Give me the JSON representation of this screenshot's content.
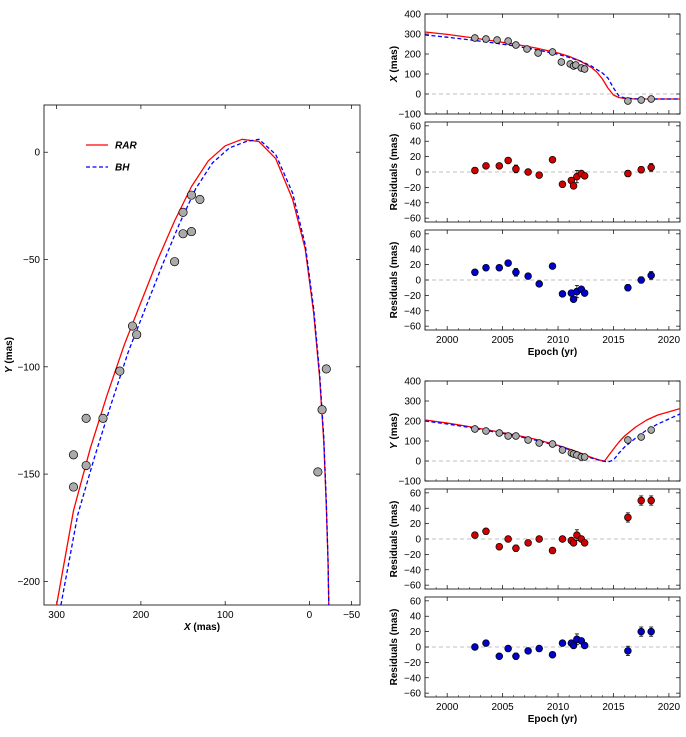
{
  "colors": {
    "rar": "#ff0000",
    "bh": "#0000ff",
    "marker_gray": "#aaaaaa",
    "marker_red": "#d00000",
    "marker_blue": "#0000cc",
    "zero_line": "#aaaaaa"
  },
  "chart_data": [
    {
      "id": "orbit",
      "type": "line",
      "xlabel": "X (mas)",
      "xlabel_var": "X",
      "xlabel_unit": " (mas)",
      "ylabel": "Y (mas)",
      "ylabel_var": "Y",
      "ylabel_unit": " (mas)",
      "xlim": [
        315,
        -60
      ],
      "ylim": [
        -211,
        22
      ],
      "xticks": [
        300,
        200,
        100,
        0,
        -50
      ],
      "xtick_labels": [
        "300",
        "200",
        "100",
        "0",
        "−50"
      ],
      "yticks": [
        0,
        -50,
        -100,
        -150,
        -200
      ],
      "ytick_labels": [
        "0",
        "−50",
        "−100",
        "−150",
        "−200"
      ],
      "legend_position": "top-left",
      "series": [
        {
          "name": "RAR",
          "style": "solid",
          "color": "#ff0000",
          "x": [
            300,
            280,
            260,
            240,
            220,
            200,
            180,
            160,
            140,
            120,
            100,
            80,
            60,
            40,
            20,
            5,
            -5,
            -12,
            -17,
            -20,
            -22,
            -23
          ],
          "y": [
            -211,
            -167,
            -138,
            -113,
            -90,
            -70,
            -50,
            -32,
            -16,
            -4,
            3,
            6,
            5,
            -3,
            -22,
            -45,
            -75,
            -105,
            -135,
            -165,
            -190,
            -211
          ]
        },
        {
          "name": "BH",
          "style": "dashed",
          "color": "#0000ff",
          "x": [
            295,
            275,
            255,
            235,
            215,
            195,
            175,
            155,
            135,
            115,
            95,
            75,
            60,
            40,
            20,
            5,
            -5,
            -12,
            -17,
            -20,
            -22,
            -23
          ],
          "y": [
            -211,
            -169,
            -142,
            -117,
            -93,
            -73,
            -53,
            -34,
            -17,
            -5,
            2,
            5,
            6,
            -1,
            -19,
            -43,
            -73,
            -103,
            -133,
            -163,
            -190,
            -211
          ]
        }
      ],
      "points": {
        "x": [
          280,
          280,
          265,
          265,
          245,
          225,
          210,
          205,
          160,
          150,
          150,
          140,
          140,
          130,
          -10,
          -15,
          -20
        ],
        "y": [
          -141,
          -156,
          -124,
          -146,
          -124,
          -102,
          -81,
          -85,
          -51,
          -38,
          -28,
          -37,
          -20,
          -22,
          -149,
          -120,
          -101
        ]
      }
    },
    {
      "id": "x_vs_time",
      "type": "line",
      "xlabel": "",
      "ylabel": "X (mas)",
      "ylabel_var": "X",
      "ylabel_unit": " (mas)",
      "xlim": [
        1998,
        2021
      ],
      "ylim": [
        -100,
        400
      ],
      "xticks": [
        2000,
        2005,
        2010,
        2015,
        2020
      ],
      "yticks": [
        -100,
        0,
        100,
        200,
        300,
        400
      ],
      "ytick_labels": [
        "−100",
        "0",
        "100",
        "200",
        "300",
        "400"
      ],
      "series": [
        {
          "name": "RAR",
          "style": "solid",
          "color": "#ff0000",
          "x": [
            1998,
            2000,
            2002,
            2004,
            2006,
            2008,
            2010,
            2011,
            2012,
            2013,
            2013.5,
            2014,
            2014.5,
            2015,
            2015.5,
            2016,
            2017,
            2018,
            2019,
            2021
          ],
          "y": [
            310,
            298,
            283,
            267,
            250,
            230,
            205,
            188,
            165,
            133,
            110,
            75,
            30,
            -5,
            -18,
            -22,
            -25,
            -25,
            -25,
            -25
          ]
        },
        {
          "name": "BH",
          "style": "dashed",
          "color": "#0000ff",
          "x": [
            1998,
            2000,
            2002,
            2004,
            2006,
            2008,
            2010,
            2011,
            2012,
            2013,
            2014,
            2014.5,
            2015,
            2015.5,
            2016,
            2017,
            2018,
            2019,
            2021
          ],
          "y": [
            295,
            284,
            271,
            257,
            241,
            222,
            198,
            183,
            165,
            140,
            105,
            80,
            30,
            -10,
            -20,
            -24,
            -25,
            -25,
            -25
          ]
        }
      ],
      "points": {
        "x": [
          2002.5,
          2003.5,
          2004.5,
          2005.5,
          2006.2,
          2007.2,
          2008.2,
          2009.5,
          2010.3,
          2011.1,
          2011.4,
          2011.6,
          2012.1,
          2012.4,
          2016.3,
          2017.5,
          2018.4
        ],
        "y": [
          280,
          275,
          270,
          265,
          245,
          225,
          205,
          210,
          160,
          150,
          140,
          145,
          130,
          125,
          -35,
          -30,
          -25
        ]
      }
    },
    {
      "id": "x_residuals_rar",
      "type": "scatter",
      "xlabel": "",
      "ylabel": "Residuals (mas)",
      "xlim": [
        1998,
        2021
      ],
      "ylim": [
        -65,
        65
      ],
      "xticks": [
        2000,
        2005,
        2010,
        2015,
        2020
      ],
      "yticks": [
        -60,
        -40,
        -20,
        0,
        20,
        40,
        60
      ],
      "ytick_labels": [
        "−60",
        "−40",
        "−20",
        "0",
        "20",
        "40",
        "60"
      ],
      "points": {
        "x": [
          2002.5,
          2003.5,
          2004.7,
          2005.5,
          2006.2,
          2007.3,
          2008.3,
          2009.5,
          2010.4,
          2011.2,
          2011.4,
          2011.7,
          2012.1,
          2012.4,
          2016.3,
          2017.5,
          2018.4
        ],
        "y": [
          2,
          8,
          8,
          15,
          4,
          0,
          -4,
          16,
          -16,
          -11,
          -18,
          -6,
          -2,
          -5,
          -2,
          3,
          6
        ],
        "err": [
          0,
          0,
          0,
          0,
          5,
          0,
          0,
          0,
          0,
          0,
          0,
          8,
          0,
          0,
          4,
          4,
          5
        ]
      }
    },
    {
      "id": "x_residuals_bh",
      "type": "scatter",
      "xlabel": "Epoch (yr)",
      "ylabel": "Residuals (mas)",
      "xlim": [
        1998,
        2021
      ],
      "ylim": [
        -65,
        65
      ],
      "xticks": [
        2000,
        2005,
        2010,
        2015,
        2020
      ],
      "yticks": [
        -60,
        -40,
        -20,
        0,
        20,
        40,
        60
      ],
      "ytick_labels": [
        "−60",
        "−40",
        "−20",
        "0",
        "20",
        "40",
        "60"
      ],
      "points": {
        "x": [
          2002.5,
          2003.5,
          2004.7,
          2005.5,
          2006.2,
          2007.3,
          2008.3,
          2009.5,
          2010.4,
          2011.2,
          2011.4,
          2011.7,
          2012.1,
          2012.4,
          2016.3,
          2017.5,
          2018.4
        ],
        "y": [
          10,
          16,
          16,
          22,
          10,
          5,
          -5,
          18,
          -18,
          -17,
          -25,
          -15,
          -12,
          -17,
          -10,
          0,
          6
        ],
        "err": [
          0,
          0,
          0,
          0,
          5,
          0,
          0,
          0,
          0,
          0,
          0,
          8,
          0,
          0,
          4,
          4,
          5
        ]
      }
    },
    {
      "id": "y_vs_time",
      "type": "line",
      "xlabel": "",
      "ylabel": "Y (mas)",
      "ylabel_var": "Y",
      "ylabel_unit": " (mas)",
      "xlim": [
        1998,
        2021
      ],
      "ylim": [
        -100,
        400
      ],
      "xticks": [
        2000,
        2005,
        2010,
        2015,
        2020
      ],
      "yticks": [
        -100,
        0,
        100,
        200,
        300,
        400
      ],
      "ytick_labels": [
        "−100",
        "0",
        "100",
        "200",
        "300",
        "400"
      ],
      "series": [
        {
          "name": "RAR",
          "style": "solid",
          "color": "#ff0000",
          "x": [
            1998,
            2000,
            2002,
            2004,
            2006,
            2008,
            2010,
            2011,
            2012,
            2013,
            2013.7,
            2014.2,
            2014.6,
            2015,
            2015.5,
            2016,
            2017,
            2018,
            2019,
            2021
          ],
          "y": [
            205,
            190,
            172,
            152,
            132,
            108,
            78,
            60,
            40,
            18,
            5,
            0,
            30,
            60,
            95,
            125,
            170,
            205,
            230,
            262
          ]
        },
        {
          "name": "BH",
          "style": "dashed",
          "color": "#0000ff",
          "x": [
            1998,
            2000,
            2002,
            2004,
            2006,
            2008,
            2010,
            2011,
            2012,
            2013,
            2014,
            2014.5,
            2015,
            2015.5,
            2016,
            2017,
            2018,
            2019,
            2021
          ],
          "y": [
            200,
            185,
            168,
            148,
            128,
            104,
            75,
            57,
            37,
            15,
            0,
            -5,
            5,
            40,
            70,
            115,
            155,
            185,
            235
          ]
        }
      ],
      "points": {
        "x": [
          2002.5,
          2003.5,
          2004.7,
          2005.5,
          2006.2,
          2007.3,
          2008.3,
          2009.5,
          2010.4,
          2011.2,
          2011.4,
          2011.7,
          2012.1,
          2012.4,
          2016.3,
          2017.5,
          2018.4
        ],
        "y": [
          160,
          150,
          140,
          125,
          125,
          105,
          90,
          85,
          55,
          40,
          35,
          30,
          20,
          20,
          105,
          120,
          155
        ]
      }
    },
    {
      "id": "y_residuals_rar",
      "type": "scatter",
      "xlabel": "",
      "ylabel": "Residuals (mas)",
      "xlim": [
        1998,
        2021
      ],
      "ylim": [
        -65,
        65
      ],
      "xticks": [
        2000,
        2005,
        2010,
        2015,
        2020
      ],
      "yticks": [
        -60,
        -40,
        -20,
        0,
        20,
        40,
        60
      ],
      "ytick_labels": [
        "−60",
        "−40",
        "−20",
        "0",
        "20",
        "40",
        "60"
      ],
      "points": {
        "x": [
          2002.5,
          2003.5,
          2004.7,
          2005.5,
          2006.2,
          2007.3,
          2008.3,
          2009.5,
          2010.4,
          2011.2,
          2011.4,
          2011.7,
          2012.1,
          2012.4,
          2016.3,
          2017.5,
          2018.4
        ],
        "y": [
          5,
          10,
          -10,
          0,
          -12,
          -5,
          0,
          -15,
          0,
          -2,
          -5,
          5,
          0,
          -5,
          28,
          50,
          50
        ],
        "err": [
          0,
          0,
          0,
          0,
          4,
          0,
          0,
          0,
          0,
          0,
          0,
          7,
          0,
          0,
          6,
          6,
          6
        ]
      }
    },
    {
      "id": "y_residuals_bh",
      "type": "scatter",
      "xlabel": "Epoch (yr)",
      "ylabel": "Residuals (mas)",
      "xlim": [
        1998,
        2021
      ],
      "ylim": [
        -65,
        65
      ],
      "xticks": [
        2000,
        2005,
        2010,
        2015,
        2020
      ],
      "yticks": [
        -60,
        -40,
        -20,
        0,
        20,
        40,
        60
      ],
      "ytick_labels": [
        "−60",
        "−40",
        "−20",
        "0",
        "20",
        "40",
        "60"
      ],
      "points": {
        "x": [
          2002.5,
          2003.5,
          2004.7,
          2005.5,
          2006.2,
          2007.3,
          2008.3,
          2009.5,
          2010.4,
          2011.2,
          2011.4,
          2011.7,
          2012.1,
          2012.4,
          2016.3,
          2017.5,
          2018.4
        ],
        "y": [
          0,
          5,
          -12,
          -2,
          -12,
          -5,
          -2,
          -10,
          5,
          5,
          2,
          10,
          8,
          2,
          -5,
          20,
          20
        ],
        "err": [
          0,
          0,
          0,
          0,
          4,
          0,
          0,
          0,
          0,
          0,
          0,
          7,
          0,
          0,
          6,
          6,
          6
        ]
      }
    }
  ]
}
